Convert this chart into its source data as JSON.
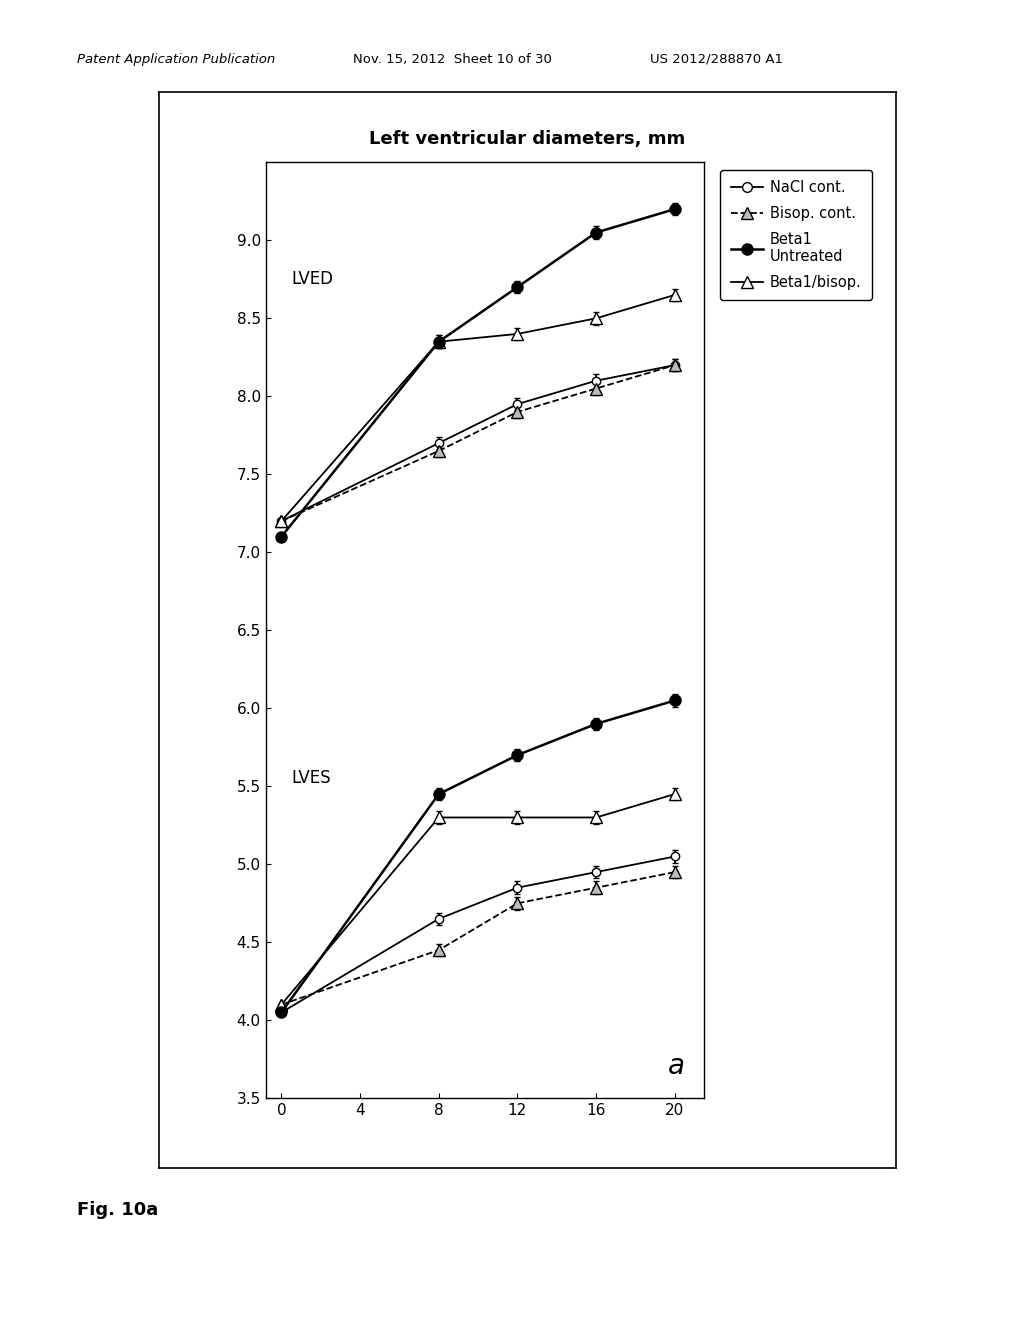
{
  "title": "Left ventricular diameters, mm",
  "x_values": [
    0,
    8,
    12,
    16,
    20
  ],
  "x_ticks": [
    0,
    4,
    8,
    12,
    16,
    20
  ],
  "ylim": [
    3.5,
    9.5
  ],
  "yticks": [
    3.5,
    4.0,
    4.5,
    5.0,
    5.5,
    6.0,
    6.5,
    7.0,
    7.5,
    8.0,
    8.5,
    9.0
  ],
  "lved_nacl": [
    7.2,
    7.7,
    7.95,
    8.1,
    8.2
  ],
  "lved_bisop": [
    7.2,
    7.65,
    7.9,
    8.05,
    8.2
  ],
  "lved_beta1": [
    7.1,
    8.35,
    8.7,
    9.05,
    9.2
  ],
  "lved_beta1bis": [
    7.2,
    8.35,
    8.4,
    8.5,
    8.65
  ],
  "lves_nacl": [
    4.05,
    4.65,
    4.85,
    4.95,
    5.05
  ],
  "lves_bisop": [
    4.1,
    4.45,
    4.75,
    4.85,
    4.95
  ],
  "lves_beta1": [
    4.05,
    5.45,
    5.7,
    5.9,
    6.05
  ],
  "lves_beta1bis": [
    4.1,
    5.3,
    5.3,
    5.3,
    5.45
  ],
  "lved_nacl_err": [
    0,
    0.04,
    0.04,
    0.04,
    0.04
  ],
  "lved_bisop_err": [
    0,
    0.04,
    0.04,
    0.04,
    0.04
  ],
  "lved_beta1_err": [
    0,
    0.04,
    0.04,
    0.04,
    0.04
  ],
  "lved_beta1bis_err": [
    0,
    0.04,
    0.04,
    0.04,
    0.04
  ],
  "lves_nacl_err": [
    0,
    0.04,
    0.04,
    0.04,
    0.04
  ],
  "lves_bisop_err": [
    0,
    0.04,
    0.04,
    0.04,
    0.04
  ],
  "lves_beta1_err": [
    0,
    0.04,
    0.04,
    0.04,
    0.04
  ],
  "lves_beta1bis_err": [
    0,
    0.04,
    0.04,
    0.04,
    0.04
  ],
  "label_nacl": "NaCl cont.",
  "label_bisop": "Bisop. cont.",
  "label_beta1": "Beta1\nUntreated",
  "label_beta1bis": "Beta1/bisop.",
  "lved_label": "LVED",
  "lves_label": "LVES",
  "fig_label": "a",
  "header_text": "Patent Application Publication",
  "header_date": "Nov. 15, 2012  Sheet 10 of 30",
  "header_id": "US 2012/288870 A1",
  "fig_caption": "Fig. 10a",
  "background_color": "#ffffff"
}
